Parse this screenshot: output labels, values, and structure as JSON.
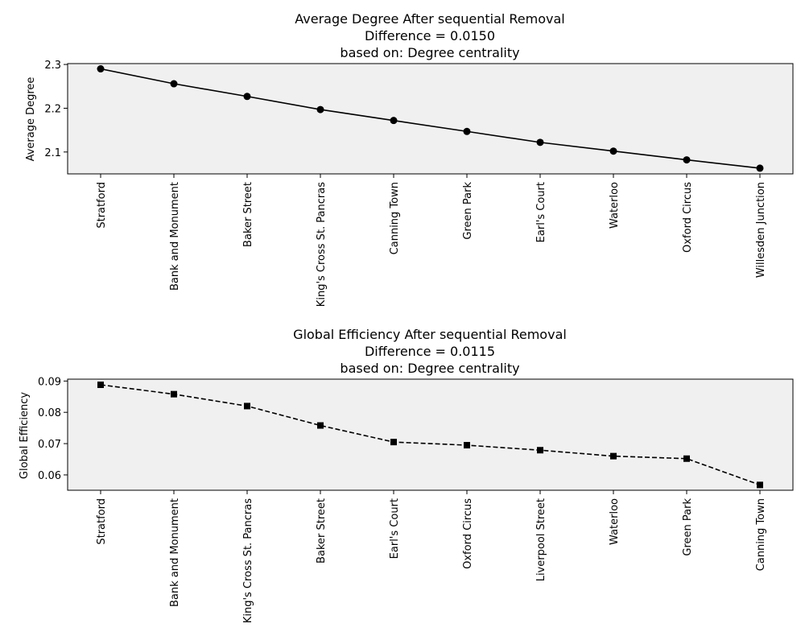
{
  "chart_data": [
    {
      "type": "line",
      "title_lines": [
        "Average Degree After sequential Removal",
        "Difference = 0.0150",
        "based on: Degree centrality"
      ],
      "ylabel": "Average Degree",
      "categories": [
        "Stratford",
        "Bank and Monument",
        "Baker Street",
        "King's Cross St. Pancras",
        "Canning Town",
        "Green Park",
        "Earl's Court",
        "Waterloo",
        "Oxford Circus",
        "Willesden Junction"
      ],
      "values": [
        2.29,
        2.256,
        2.227,
        2.197,
        2.172,
        2.147,
        2.122,
        2.102,
        2.082,
        2.063
      ],
      "ylim": [
        2.05,
        2.302
      ],
      "yticks": [
        "2.1",
        "2.2",
        "2.3"
      ],
      "line_style": "solid",
      "marker": "circle",
      "color": "#000000",
      "background": "#f0f0f0",
      "grid": false
    },
    {
      "type": "line",
      "title_lines": [
        "Global Efficiency After sequential Removal",
        "Difference = 0.0115",
        "based on: Degree centrality"
      ],
      "ylabel": "Global Efficiency",
      "categories": [
        "Stratford",
        "Bank and Monument",
        "King's Cross St. Pancras",
        "Baker Street",
        "Earl's Court",
        "Oxford Circus",
        "Liverpool Street",
        "Waterloo",
        "Green Park",
        "Canning Town"
      ],
      "values": [
        0.0888,
        0.0858,
        0.082,
        0.0758,
        0.0705,
        0.0695,
        0.0679,
        0.066,
        0.0652,
        0.0568
      ],
      "ylim": [
        0.0551,
        0.0906
      ],
      "yticks": [
        "0.06",
        "0.07",
        "0.08",
        "0.09"
      ],
      "line_style": "dashed",
      "marker": "square",
      "color": "#000000",
      "background": "#f0f0f0",
      "grid": false
    }
  ]
}
